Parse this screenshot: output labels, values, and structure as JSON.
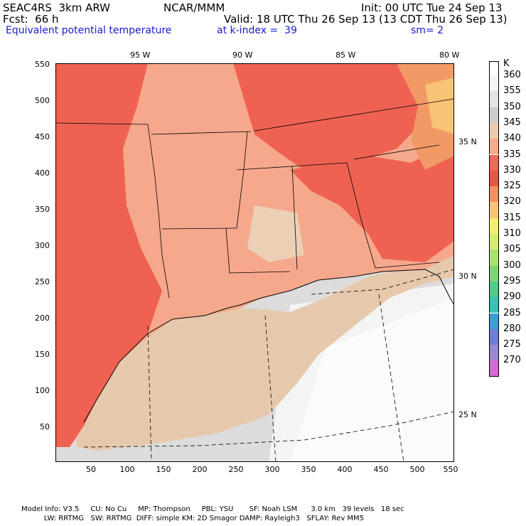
{
  "header": {
    "line1_left": "SEAC4RS  3km ARW",
    "line1_mid": "NCAR/MMM",
    "line1_right": "Init: 00 UTC Tue 24 Sep 13",
    "line2_left": "Fcst:  66 h",
    "line2_right": "Valid: 18 UTC Thu 26 Sep 13 (13 CDT Thu 26 Sep 13)",
    "line3_left": "Equivalent potential temperature",
    "line3_mid": "at k-index =  39",
    "line3_right": "sm= 2"
  },
  "longitude_labels": [
    "95 W",
    "90 W",
    "85 W",
    "80 W"
  ],
  "latitude_labels": [
    "35 N",
    "30 N",
    "25 N"
  ],
  "x_ticks": [
    "50",
    "100",
    "150",
    "200",
    "250",
    "300",
    "350",
    "400",
    "450",
    "500",
    "550"
  ],
  "y_ticks": [
    "550",
    "500",
    "450",
    "400",
    "350",
    "300",
    "250",
    "200",
    "150",
    "100",
    "50"
  ],
  "colorbar": {
    "unit": "K",
    "levels": [
      "360",
      "355",
      "350",
      "345",
      "340",
      "335",
      "330",
      "325",
      "320",
      "315",
      "310",
      "305",
      "300",
      "295",
      "290",
      "285",
      "280",
      "275",
      "270"
    ],
    "colors": [
      "#f4f4f4",
      "#e2e2e2",
      "#cbcbcb",
      "#e9ccb0",
      "#f6aa8c",
      "#f06858",
      "#e85546",
      "#f29060",
      "#f7c374",
      "#f4ee6c",
      "#d7ec6e",
      "#a8e270",
      "#7fd474",
      "#4fcc8a",
      "#33c6b2",
      "#3aa0d6",
      "#6c7ed8",
      "#9c88d0",
      "#d66ad2"
    ]
  },
  "footer": {
    "line1": "Model Info: V3.5     CU: No Cu     MP: Thompson     PBL: YSU       SF: Noah LSM      3.0 km   39 levels   18 sec",
    "line2": "          LW: RRTMG   SW: RRTMG  DIFF: simple KM: 2D Smagor DAMP: Rayleigh3   SFLAY: Rev MM5"
  }
}
